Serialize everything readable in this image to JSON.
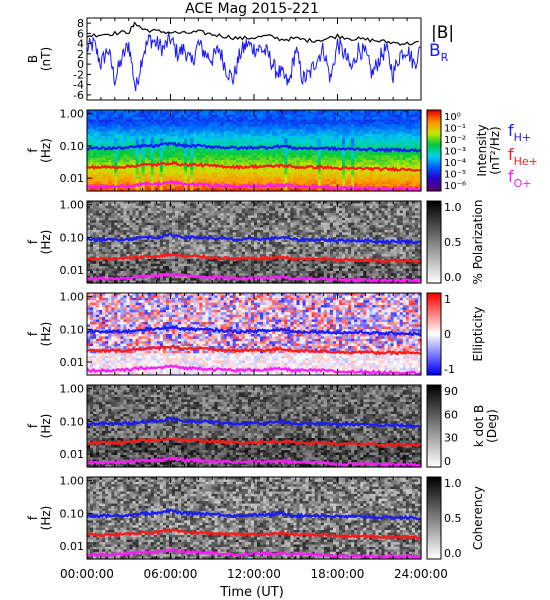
{
  "figure": {
    "title": "ACE Mag 2015-221",
    "x_axis": {
      "ticks": [
        "00:00:00",
        "06:00:00",
        "12:00:00",
        "18:00:00",
        "24:00:00"
      ],
      "label": "Time (UT)"
    }
  },
  "colors": {
    "B_total": "#000000",
    "B_R": "#1a1aff",
    "f_H": "#1a1aff",
    "f_He": "#ff1a1a",
    "f_O": "#ff1aff"
  },
  "chart_data": [
    {
      "type": "line",
      "name": "B panel",
      "ylabel": "B (nT)",
      "yticks": [
        "8",
        "6",
        "4",
        "2",
        "0",
        "-2",
        "-4",
        "-6"
      ],
      "ylim": [
        -7,
        9
      ],
      "xlim": [
        0,
        24
      ],
      "legend": [
        "|B|",
        "B_R"
      ],
      "series": [
        {
          "name": "|B|",
          "x": [
            0,
            1,
            2,
            3,
            3.5,
            4,
            5,
            6,
            7,
            8,
            9,
            10,
            11,
            12,
            13,
            14,
            15,
            16,
            17,
            18,
            19,
            20,
            21,
            22,
            23,
            24
          ],
          "values": [
            5.5,
            5.8,
            6.0,
            6.3,
            8.0,
            6.8,
            6.4,
            6.2,
            6.0,
            6.3,
            5.8,
            5.4,
            5.0,
            5.2,
            5.5,
            4.8,
            5.0,
            4.6,
            4.8,
            5.5,
            5.0,
            4.8,
            4.5,
            4.2,
            4.0,
            4.2
          ]
        },
        {
          "name": "B_R",
          "x": [
            0,
            0.5,
            1,
            1.5,
            2,
            2.5,
            3,
            3.5,
            4,
            4.5,
            5,
            5.5,
            6,
            6.5,
            7,
            7.5,
            8,
            8.5,
            9,
            9.5,
            10,
            10.5,
            11,
            11.5,
            12,
            12.5,
            13,
            13.5,
            14,
            14.5,
            15,
            15.5,
            16,
            16.5,
            17,
            17.5,
            18,
            18.5,
            19,
            19.5,
            20,
            20.5,
            21,
            21.5,
            22,
            22.5,
            23,
            23.5,
            24
          ],
          "values": [
            3,
            4,
            0,
            3,
            -3,
            1,
            4,
            -5,
            2,
            5,
            4,
            3,
            5,
            2,
            3,
            0,
            4,
            2,
            1,
            3,
            -1,
            -3,
            2,
            4,
            3,
            3,
            2,
            -1,
            -2,
            -4,
            3,
            -3,
            -2,
            1,
            3,
            -3,
            4,
            2,
            -1,
            3,
            2,
            -2,
            1,
            3,
            -2,
            2,
            3,
            0,
            3
          ]
        }
      ]
    },
    {
      "type": "heatmap",
      "name": "Intensity spectrogram",
      "ylabel": "f (Hz)",
      "yscale": "log",
      "yticks": [
        "1.00",
        "0.10",
        "0.01"
      ],
      "ylim": [
        0.004,
        1.3
      ],
      "colorbar": {
        "label": "Intensity (nT²/Hz)",
        "ticks": [
          "10⁰",
          "10⁻¹",
          "10⁻²",
          "10⁻³",
          "10⁻⁴",
          "10⁻⁵",
          "10⁻⁶"
        ]
      },
      "legend": [
        "f_H+",
        "f_He+",
        "f_O+"
      ]
    },
    {
      "type": "heatmap",
      "name": "Polarization",
      "ylabel": "f (Hz)",
      "yscale": "log",
      "yticks": [
        "1.00",
        "0.10",
        "0.01"
      ],
      "colorbar": {
        "label": "% Polarization",
        "ticks": [
          "1.0",
          "0.5",
          "0.0"
        ]
      }
    },
    {
      "type": "heatmap",
      "name": "Ellipticity",
      "ylabel": "f (Hz)",
      "yscale": "log",
      "yticks": [
        "1.00",
        "0.10",
        "0.01"
      ],
      "colorbar": {
        "label": "Ellipticity",
        "ticks": [
          "1",
          "0",
          "-1"
        ]
      }
    },
    {
      "type": "heatmap",
      "name": "k dot B",
      "ylabel": "f (Hz)",
      "yscale": "log",
      "yticks": [
        "1.00",
        "0.10",
        "0.01"
      ],
      "colorbar": {
        "label": "k dot B (Deg)",
        "ticks": [
          "90",
          "60",
          "30",
          "0"
        ]
      }
    },
    {
      "type": "heatmap",
      "name": "Coherency",
      "ylabel": "f (Hz)",
      "yscale": "log",
      "yticks": [
        "1.00",
        "0.10",
        "0.01"
      ],
      "colorbar": {
        "label": "Coherency",
        "ticks": [
          "1.0",
          "0.5",
          "0.0"
        ]
      }
    }
  ],
  "gyro_lines": {
    "x": [
      0,
      2,
      3,
      4,
      5,
      6,
      7,
      8,
      9,
      10,
      11,
      12,
      13,
      14,
      15,
      16,
      17,
      18,
      19,
      20,
      21,
      22,
      23,
      24
    ],
    "f_H": [
      0.085,
      0.085,
      0.088,
      0.1,
      0.1,
      0.12,
      0.1,
      0.1,
      0.095,
      0.09,
      0.085,
      0.09,
      0.09,
      0.1,
      0.085,
      0.085,
      0.085,
      0.08,
      0.08,
      0.08,
      0.075,
      0.075,
      0.075,
      0.07
    ],
    "f_He": [
      0.022,
      0.022,
      0.023,
      0.026,
      0.026,
      0.03,
      0.026,
      0.026,
      0.024,
      0.023,
      0.022,
      0.023,
      0.023,
      0.025,
      0.022,
      0.022,
      0.022,
      0.02,
      0.02,
      0.02,
      0.019,
      0.019,
      0.019,
      0.018
    ],
    "f_O": [
      0.0055,
      0.0055,
      0.0058,
      0.0065,
      0.0065,
      0.0075,
      0.0065,
      0.0065,
      0.006,
      0.0058,
      0.0055,
      0.0058,
      0.0058,
      0.0062,
      0.0055,
      0.0055,
      0.0055,
      0.005,
      0.005,
      0.005,
      0.0048,
      0.0048,
      0.0048,
      0.0046
    ]
  }
}
